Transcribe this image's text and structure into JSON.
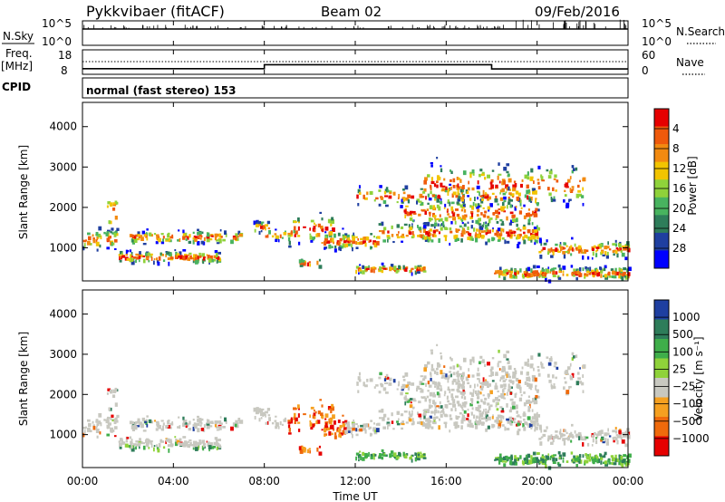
{
  "header": {
    "station": "Pykkvibaer (fitACF)",
    "beam": "Beam 02",
    "date": "09/Feb/2016"
  },
  "strips": {
    "nsky_label": "N.Sky",
    "nsky_ticks": [
      "10^5",
      "10^0"
    ],
    "nsearch_label": "N.Search",
    "nsearch_ticks": [
      "10^5",
      "10^0"
    ],
    "freq_label_1": "Freq.",
    "freq_label_2": "[MHz]",
    "freq_ticks": [
      "18",
      "8"
    ],
    "nave_label": "Nave",
    "nave_ticks": [
      "60",
      "0"
    ],
    "cpid_label": "CPID",
    "cpid_text": "normal (fast stereo) 153",
    "freq_series": [
      {
        "start": "00:00",
        "end": "08:00",
        "value_mhz": 10.3
      },
      {
        "start": "08:00",
        "end": "18:00",
        "value_mhz": 11.9
      },
      {
        "start": "18:00",
        "end": "24:00",
        "value_mhz": 10.2
      }
    ]
  },
  "chart_data": [
    {
      "type": "heatmap",
      "name": "power",
      "ylabel": "Slant Range [km]",
      "ylim": [
        180,
        4600
      ],
      "yticks": [
        "1000",
        "2000",
        "3000",
        "4000"
      ],
      "xticks": [
        "00:00",
        "04:00",
        "08:00",
        "12:00",
        "16:00",
        "20:00",
        "00:00"
      ],
      "colorbar_label": "Power [dB]",
      "colorbar_ticks": [
        "4",
        "8",
        "12",
        "16",
        "20",
        "24",
        "28"
      ],
      "colors": [
        "#0000ff",
        "#1f3fa0",
        "#2e7d5a",
        "#48b35f",
        "#8fd23a",
        "#f2c400",
        "#f28a10",
        "#ef5a0c",
        "#e60000"
      ]
    },
    {
      "type": "heatmap",
      "name": "velocity",
      "ylabel": "Slant Range [km]",
      "xlabel": "Time UT",
      "ylim": [
        180,
        4600
      ],
      "yticks": [
        "1000",
        "2000",
        "3000",
        "4000"
      ],
      "xticks": [
        "00:00",
        "04:00",
        "08:00",
        "12:00",
        "16:00",
        "20:00",
        "00:00"
      ],
      "colorbar_label": "Velocity [m s⁻¹]",
      "colorbar_ticks": [
        "1000",
        "500",
        "100",
        "25",
        "−25",
        "−100",
        "−500",
        "−1000"
      ],
      "colors": [
        "#1f3fa0",
        "#2e7d5a",
        "#3fae4a",
        "#8fd23a",
        "#c8c8c0",
        "#f5a020",
        "#ef6a0c",
        "#e60000"
      ]
    }
  ]
}
